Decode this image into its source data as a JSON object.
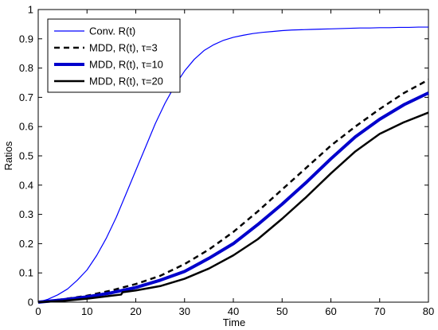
{
  "chart_data": {
    "type": "line",
    "title": "",
    "xlabel": "Time",
    "ylabel": "Ratios",
    "xlim": [
      0,
      80
    ],
    "ylim": [
      0,
      1
    ],
    "xticks": [
      "0",
      "10",
      "20",
      "30",
      "40",
      "50",
      "60",
      "70",
      "80"
    ],
    "yticks": [
      "0",
      "0.1",
      "0.2",
      "0.3",
      "0.4",
      "0.5",
      "0.6",
      "0.7",
      "0.8",
      "0.9",
      "1"
    ],
    "grid": false,
    "legend_position": "top-left",
    "series": [
      {
        "name": "Conv. R(t)",
        "color": "#0000ff",
        "style": "solid-thin",
        "x": [
          0,
          2,
          4,
          6,
          8,
          10,
          12,
          14,
          16,
          18,
          20,
          22,
          24,
          26,
          28,
          30,
          32,
          34,
          36,
          38,
          40,
          42,
          44,
          46,
          48,
          50,
          52,
          54,
          56,
          58,
          60,
          62,
          64,
          66,
          68,
          70,
          72,
          74,
          76,
          78,
          80
        ],
        "y": [
          0.0,
          0.01,
          0.025,
          0.045,
          0.075,
          0.11,
          0.16,
          0.22,
          0.29,
          0.37,
          0.45,
          0.53,
          0.61,
          0.68,
          0.74,
          0.79,
          0.83,
          0.86,
          0.88,
          0.895,
          0.905,
          0.912,
          0.918,
          0.922,
          0.925,
          0.928,
          0.93,
          0.931,
          0.932,
          0.933,
          0.934,
          0.935,
          0.936,
          0.937,
          0.937,
          0.938,
          0.938,
          0.939,
          0.939,
          0.94,
          0.94
        ]
      },
      {
        "name": "MDD, R(t), τ=3",
        "color": "#000000",
        "style": "dashed",
        "x": [
          0,
          5,
          10,
          15,
          20,
          25,
          30,
          35,
          40,
          45,
          50,
          55,
          60,
          65,
          70,
          75,
          80
        ],
        "y": [
          0.0,
          0.01,
          0.022,
          0.04,
          0.062,
          0.09,
          0.13,
          0.18,
          0.24,
          0.31,
          0.385,
          0.46,
          0.535,
          0.6,
          0.66,
          0.715,
          0.76
        ]
      },
      {
        "name": "MDD, R(t), τ=10",
        "color": "#0000cc",
        "style": "solid-thick",
        "x": [
          0,
          5,
          10,
          15,
          20,
          25,
          30,
          35,
          40,
          45,
          50,
          55,
          60,
          65,
          70,
          75,
          80
        ],
        "y": [
          0.0,
          0.008,
          0.018,
          0.032,
          0.05,
          0.075,
          0.105,
          0.15,
          0.2,
          0.265,
          0.335,
          0.41,
          0.49,
          0.565,
          0.625,
          0.675,
          0.715
        ]
      },
      {
        "name": "MDD, R(t), τ=20",
        "color": "#000000",
        "style": "solid-medium",
        "x": [
          0,
          5,
          10,
          15,
          17,
          17.3,
          20,
          25,
          30,
          35,
          40,
          45,
          50,
          55,
          60,
          65,
          70,
          75,
          80
        ],
        "y": [
          0.0,
          0.004,
          0.012,
          0.022,
          0.026,
          0.034,
          0.04,
          0.055,
          0.08,
          0.115,
          0.16,
          0.215,
          0.285,
          0.36,
          0.44,
          0.515,
          0.575,
          0.615,
          0.648
        ]
      }
    ]
  }
}
